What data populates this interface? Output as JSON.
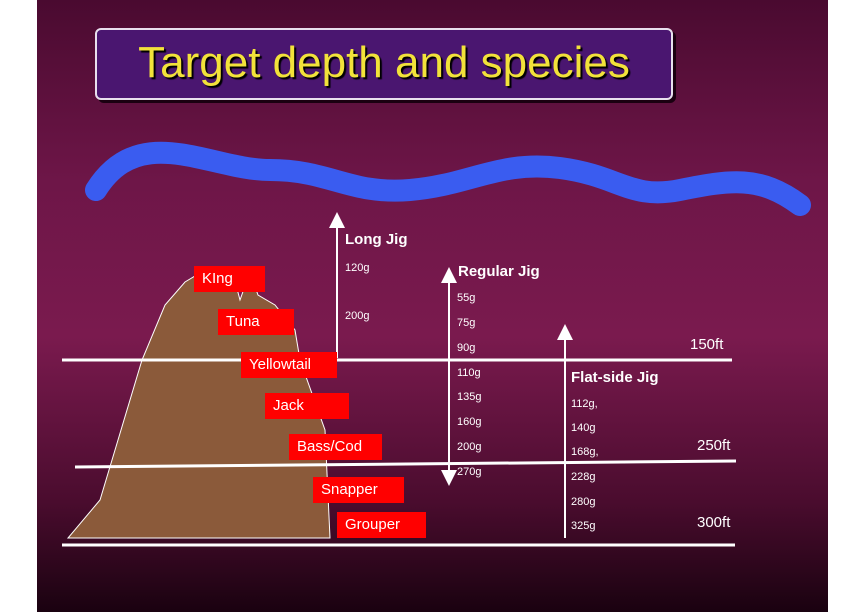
{
  "title": "Target depth and species",
  "jigs": {
    "long": {
      "name": "Long Jig",
      "weights": [
        "120g",
        "200g"
      ]
    },
    "regular": {
      "name": "Regular Jig",
      "weights": [
        "55g",
        "75g",
        "90g",
        "110g",
        "135g",
        "160g",
        "200g",
        "270g"
      ]
    },
    "flat": {
      "name": "Flat-side Jig",
      "weights": [
        "112g,",
        "140g",
        "168g,",
        "228g",
        "280g",
        "325g"
      ]
    }
  },
  "depths": [
    "150ft",
    "250ft",
    "300ft"
  ],
  "species": [
    "KIng",
    "Tuna",
    "Yellowtail",
    "Jack",
    "Bass/Cod",
    "Snapper",
    "Grouper"
  ],
  "colors": {
    "wave": "#3a5cf0",
    "reef": "#8b5a3a",
    "tag": "#ff0000",
    "title_text": "#f2e23a"
  }
}
